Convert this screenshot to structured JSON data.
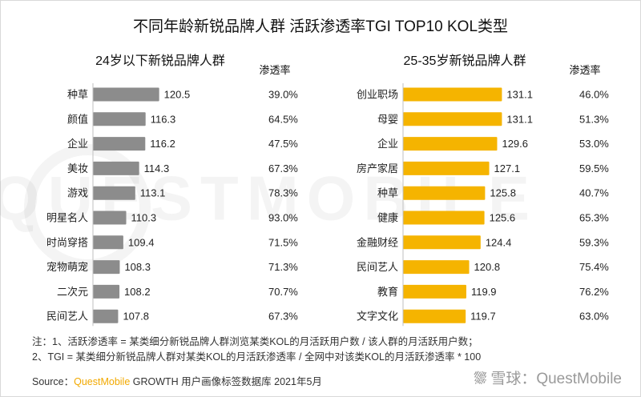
{
  "title": "不同年龄新锐品牌人群 活跃渗透率TGI TOP10 KOL类型",
  "watermark": "QUESTMOBILE",
  "chart_data": [
    {
      "type": "bar",
      "orientation": "horizontal",
      "title": "24岁以下新锐品牌人群",
      "value_column_label": "渗透率",
      "categories": [
        "种草",
        "颜值",
        "企业",
        "美妆",
        "游戏",
        "明星名人",
        "时尚穿搭",
        "宠物萌宠",
        "二次元",
        "民间艺人"
      ],
      "values": [
        120.5,
        116.3,
        116.2,
        114.3,
        113.1,
        110.3,
        109.4,
        108.3,
        108.2,
        107.8
      ],
      "penetration": [
        "39.0%",
        "64.5%",
        "47.5%",
        "67.3%",
        "78.3%",
        "93.0%",
        "71.5%",
        "71.3%",
        "70.7%",
        "67.3%"
      ],
      "bar_color": "#8c8c8c",
      "xlim": [
        100,
        132
      ]
    },
    {
      "type": "bar",
      "orientation": "horizontal",
      "title": "25-35岁新锐品牌人群",
      "value_column_label": "渗透率",
      "categories": [
        "创业职场",
        "母婴",
        "企业",
        "房产家居",
        "种草",
        "健康",
        "金融财经",
        "民间艺人",
        "教育",
        "文字文化"
      ],
      "values": [
        131.1,
        131.1,
        129.6,
        127.1,
        125.8,
        125.6,
        124.4,
        120.8,
        119.9,
        119.7
      ],
      "penetration": [
        "46.0%",
        "51.3%",
        "53.0%",
        "59.5%",
        "40.7%",
        "65.3%",
        "59.3%",
        "75.4%",
        "76.2%",
        "63.0%"
      ],
      "bar_color": "#f5b400",
      "xlim": [
        100,
        132
      ]
    }
  ],
  "notes": {
    "line1": "注：1、活跃渗透率 = 某类细分新锐品牌人群浏览某类KOL的月活跃用户数 / 该人群的月活跃用户数；",
    "line2": "2、TGI = 某类细分新锐品牌人群对某类KOL的月活跃渗透率 / 全网中对该类KOL的月活跃渗透率 * 100"
  },
  "source": {
    "prefix": "Source：",
    "brand": "QuestMobile",
    "suffix": " GROWTH 用户画像标签数据库 2021年5月"
  },
  "corner_watermark": {
    "glyph": "⛆",
    "text": "雪球：QuestMobile"
  }
}
